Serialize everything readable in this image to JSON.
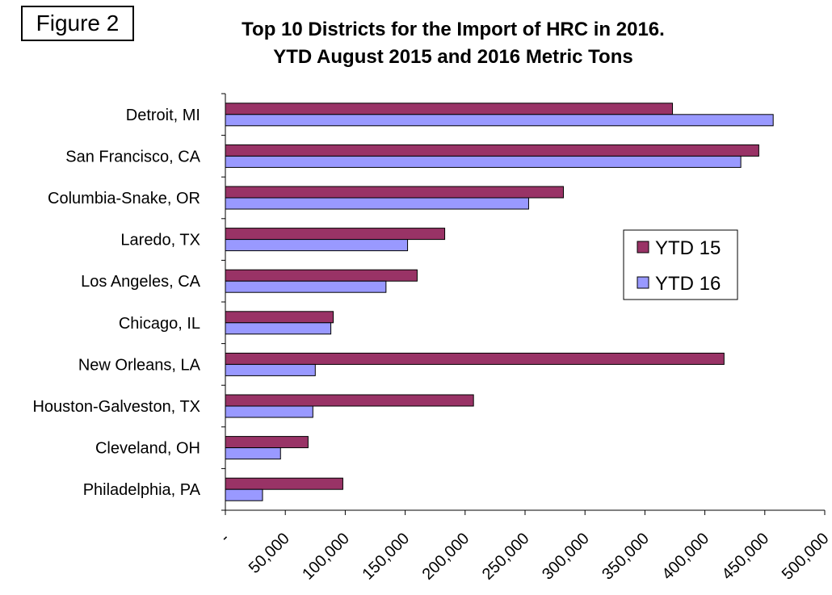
{
  "figure_label": "Figure 2",
  "chart_data": {
    "type": "bar",
    "orientation": "horizontal",
    "title": "Top 10 Districts for the Import of HRC in 2016.",
    "subtitle": "YTD August 2015 and 2016 Metric Tons",
    "xlabel": "",
    "ylabel": "",
    "xlim": [
      0,
      500000
    ],
    "x_tick_values": [
      0,
      50000,
      100000,
      150000,
      200000,
      250000,
      300000,
      350000,
      400000,
      450000,
      500000
    ],
    "x_tick_labels": [
      "-",
      "50,000",
      "100,000",
      "150,000",
      "200,000",
      "250,000",
      "300,000",
      "350,000",
      "400,000",
      "450,000",
      "500,000"
    ],
    "categories": [
      "Detroit, MI",
      "San Francisco, CA",
      "Columbia-Snake, OR",
      "Laredo, TX",
      "Los Angeles, CA",
      "Chicago, IL",
      "New Orleans, LA",
      "Houston-Galveston, TX",
      "Cleveland, OH",
      "Philadelphia, PA"
    ],
    "series": [
      {
        "name": "YTD 15",
        "color": "#993366",
        "values": [
          373000,
          445000,
          282000,
          183000,
          160000,
          90000,
          416000,
          207000,
          69000,
          98000
        ]
      },
      {
        "name": "YTD 16",
        "color": "#9999ff",
        "values": [
          457000,
          430000,
          253000,
          152000,
          134000,
          88000,
          75000,
          73000,
          46000,
          31000
        ]
      }
    ],
    "legend_position": "right",
    "grid": false
  }
}
